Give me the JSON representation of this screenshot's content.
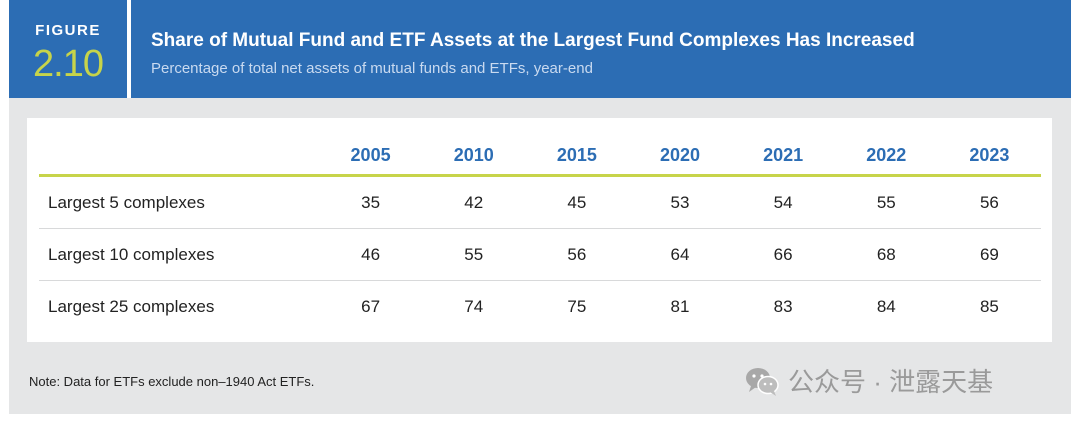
{
  "figure": {
    "label": "FIGURE",
    "number": "2.10"
  },
  "title": "Share of Mutual Fund and ETF Assets at the Largest Fund Complexes Has Increased",
  "subtitle": "Percentage of total net assets of mutual funds and ETFs, year-end",
  "chart_data": {
    "type": "table",
    "columns": [
      "2005",
      "2010",
      "2015",
      "2020",
      "2021",
      "2022",
      "2023"
    ],
    "rows": [
      {
        "label": "Largest 5 complexes",
        "values": [
          35,
          42,
          45,
          53,
          54,
          55,
          56
        ]
      },
      {
        "label": "Largest 10 complexes",
        "values": [
          46,
          55,
          56,
          64,
          66,
          68,
          69
        ]
      },
      {
        "label": "Largest 25 complexes",
        "values": [
          67,
          74,
          75,
          81,
          83,
          84,
          85
        ]
      }
    ]
  },
  "note": "Note: Data for ETFs exclude non–1940 Act ETFs.",
  "watermark": {
    "text": "公众号 · 泄露天基",
    "icon": "wechat-icon"
  },
  "colors": {
    "header": "#2c6db4",
    "accent": "#c7d44a",
    "background": "#e5e6e7"
  }
}
